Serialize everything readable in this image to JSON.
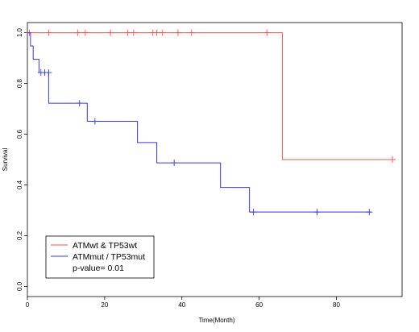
{
  "chart_data": {
    "type": "line",
    "title": "",
    "xlabel": "Time(Month)",
    "ylabel": "Survival",
    "xlim": [
      0,
      97
    ],
    "ylim": [
      -0.04,
      1.04
    ],
    "x_ticks": [
      "0",
      "20",
      "40",
      "60",
      "80"
    ],
    "y_ticks": [
      "0.0",
      "0.2",
      "0.4",
      "0.6",
      "0.8",
      "1.0"
    ],
    "legend_position": "bottom-left",
    "p_value_text": "p-value= 0.01",
    "series": [
      {
        "name": "ATMwt & TP53wt",
        "color": "#ff4d4d",
        "steps": [
          [
            0,
            1.0
          ],
          [
            66,
            0.5
          ],
          [
            95,
            0.5
          ]
        ],
        "censor_marks": [
          [
            0.5,
            1.0
          ],
          [
            5.5,
            1.0
          ],
          [
            13,
            1.0
          ],
          [
            15,
            1.0
          ],
          [
            21.5,
            1.0
          ],
          [
            26,
            1.0
          ],
          [
            27.5,
            1.0
          ],
          [
            32.5,
            1.0
          ],
          [
            33.5,
            1.0
          ],
          [
            35,
            1.0
          ],
          [
            39,
            1.0
          ],
          [
            42.5,
            1.0
          ],
          [
            62,
            1.0
          ],
          [
            94.5,
            0.5
          ]
        ]
      },
      {
        "name": "ATMmut / TP53mut",
        "color": "#3333ff",
        "steps": [
          [
            0,
            1.0
          ],
          [
            0.8,
            0.948
          ],
          [
            1.5,
            0.895
          ],
          [
            3,
            0.843
          ],
          [
            5.5,
            0.722
          ],
          [
            15.5,
            0.651
          ],
          [
            28.5,
            0.567
          ],
          [
            33.5,
            0.487
          ],
          [
            50,
            0.39
          ],
          [
            57.5,
            0.293
          ],
          [
            89,
            0.293
          ]
        ],
        "censor_marks": [
          [
            3.5,
            0.843
          ],
          [
            4.5,
            0.843
          ],
          [
            5.5,
            0.843
          ],
          [
            13.5,
            0.722
          ],
          [
            17.5,
            0.651
          ],
          [
            38,
            0.487
          ],
          [
            58.5,
            0.293
          ],
          [
            75,
            0.293
          ],
          [
            88.5,
            0.293
          ]
        ]
      }
    ]
  }
}
